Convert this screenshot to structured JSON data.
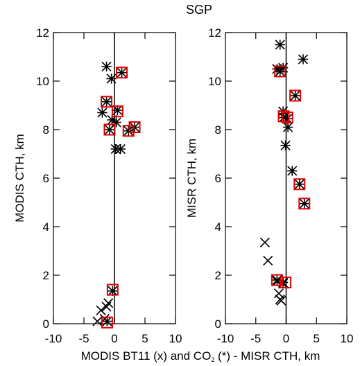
{
  "figure": {
    "title": "SGP",
    "shared_xlabel_parts": [
      "MODIS BT11 (x) and CO",
      "2",
      " (*) - MISR CTH, km"
    ]
  },
  "chart_data": [
    {
      "type": "scatter",
      "panel": "left",
      "ylabel": "MODIS CTH, km",
      "xlim": [
        -10,
        10
      ],
      "ylim": [
        0,
        12
      ],
      "xticks": [
        -10,
        -5,
        0,
        5,
        10
      ],
      "yticks": [
        0,
        2,
        4,
        6,
        8,
        10,
        12
      ],
      "zero_line": true,
      "series": [
        {
          "name": "MODIS BT11 (x)",
          "marker": "x",
          "points": [
            [
              -2.2,
              0.55
            ],
            [
              -1.3,
              0.7
            ],
            [
              -2.8,
              0.1
            ],
            [
              -1.6,
              0.2
            ],
            [
              -1.0,
              0.85
            ]
          ]
        },
        {
          "name": "MODIS CO2 (*)",
          "marker": "asterisk",
          "points": [
            [
              -1.3,
              10.6
            ],
            [
              -0.5,
              10.1
            ],
            [
              1.2,
              10.35
            ],
            [
              -1.3,
              9.15
            ],
            [
              -2.0,
              8.7
            ],
            [
              0.5,
              8.8
            ],
            [
              -0.4,
              8.4
            ],
            [
              0.3,
              8.3
            ],
            [
              -0.8,
              8.0
            ],
            [
              2.3,
              7.95
            ],
            [
              3.3,
              8.1
            ],
            [
              0.2,
              7.2
            ],
            [
              1.0,
              7.2
            ],
            [
              -0.3,
              1.35
            ],
            [
              -1.2,
              0.1
            ]
          ]
        }
      ],
      "highlighted": [
        [
          1.2,
          10.35
        ],
        [
          -1.3,
          9.15
        ],
        [
          0.5,
          8.75
        ],
        [
          -0.8,
          8.0
        ],
        [
          2.3,
          7.95
        ],
        [
          3.3,
          8.1
        ],
        [
          -0.3,
          1.4
        ],
        [
          -1.2,
          0.05
        ]
      ],
      "highlight_color": "#e00000"
    },
    {
      "type": "scatter",
      "panel": "right",
      "ylabel": "MISR CTH, km",
      "xlim": [
        -10,
        10
      ],
      "ylim": [
        0,
        12
      ],
      "xticks": [
        -10,
        -5,
        0,
        5,
        10
      ],
      "yticks": [
        0,
        2,
        4,
        6,
        8,
        10,
        12
      ],
      "zero_line": true,
      "series": [
        {
          "name": "MODIS BT11 (x)",
          "marker": "x",
          "points": [
            [
              -3.5,
              3.35
            ],
            [
              -3.0,
              2.6
            ],
            [
              -1.5,
              1.75
            ],
            [
              -1.2,
              1.25
            ],
            [
              -1.0,
              1.0
            ],
            [
              -0.8,
              0.95
            ],
            [
              -0.5,
              1.65
            ]
          ]
        },
        {
          "name": "MODIS CO2 (*)",
          "marker": "asterisk",
          "points": [
            [
              -1.0,
              11.5
            ],
            [
              2.8,
              10.9
            ],
            [
              -1.5,
              10.5
            ],
            [
              -0.5,
              10.55
            ],
            [
              -1.0,
              10.4
            ],
            [
              1.5,
              9.4
            ],
            [
              -0.5,
              8.75
            ],
            [
              -0.4,
              8.5
            ],
            [
              0.2,
              8.45
            ],
            [
              0.3,
              8.1
            ],
            [
              -0.1,
              7.35
            ],
            [
              1.0,
              6.3
            ],
            [
              2.2,
              5.75
            ],
            [
              3.0,
              4.95
            ],
            [
              -1.5,
              1.8
            ],
            [
              -0.5,
              1.7
            ]
          ]
        }
      ],
      "highlighted": [
        [
          -1.0,
          10.4
        ],
        [
          1.5,
          9.4
        ],
        [
          -0.4,
          8.55
        ],
        [
          0.2,
          8.5
        ],
        [
          2.2,
          5.75
        ],
        [
          3.0,
          4.95
        ],
        [
          -1.5,
          1.8
        ],
        [
          -0.1,
          1.7
        ]
      ],
      "highlight_color": "#e00000"
    }
  ]
}
